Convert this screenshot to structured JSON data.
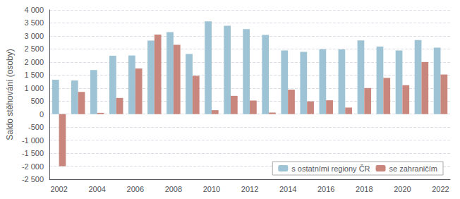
{
  "chart_data": {
    "type": "bar",
    "categories": [
      "2002",
      null,
      "2004",
      null,
      "2006",
      null,
      "2008",
      null,
      "2010",
      null,
      "2012",
      null,
      "2014",
      null,
      "2016",
      null,
      "2018",
      null,
      "2020",
      null,
      "2022"
    ],
    "series": [
      {
        "name": "s ostatními regiony ČR",
        "color": "#9DC3D4",
        "values": [
          1320,
          1290,
          1690,
          2240,
          2250,
          2820,
          3150,
          2310,
          3560,
          3390,
          3260,
          3040,
          2440,
          2390,
          2490,
          2480,
          2830,
          2590,
          2440,
          2840,
          2550
        ]
      },
      {
        "name": "se zahraničím",
        "color": "#C9867C",
        "values": [
          -2000,
          850,
          50,
          620,
          1750,
          3050,
          2660,
          1470,
          150,
          700,
          520,
          60,
          940,
          490,
          530,
          250,
          1000,
          1390,
          1110,
          2000,
          1520
        ]
      }
    ],
    "ylabel": "Saldo stěhování (osoby)",
    "ylim": [
      -2500,
      4000
    ],
    "yticks": [
      {
        "value": -2500,
        "label": "-2 500"
      },
      {
        "value": -2000,
        "label": "-2 000"
      },
      {
        "value": -1500,
        "label": "-1 500"
      },
      {
        "value": -1000,
        "label": "-1 000"
      },
      -500,
      0,
      500,
      {
        "value": 1000,
        "label": "1 000"
      },
      {
        "value": 1500,
        "label": "1 500"
      },
      {
        "value": 2000,
        "label": "2 000"
      },
      {
        "value": 2500,
        "label": "2 500"
      },
      {
        "value": 3000,
        "label": "3 000"
      },
      {
        "value": 3500,
        "label": "3 500"
      },
      {
        "value": 4000,
        "label": "4 000"
      }
    ],
    "grid": true,
    "legend": "lower right"
  }
}
